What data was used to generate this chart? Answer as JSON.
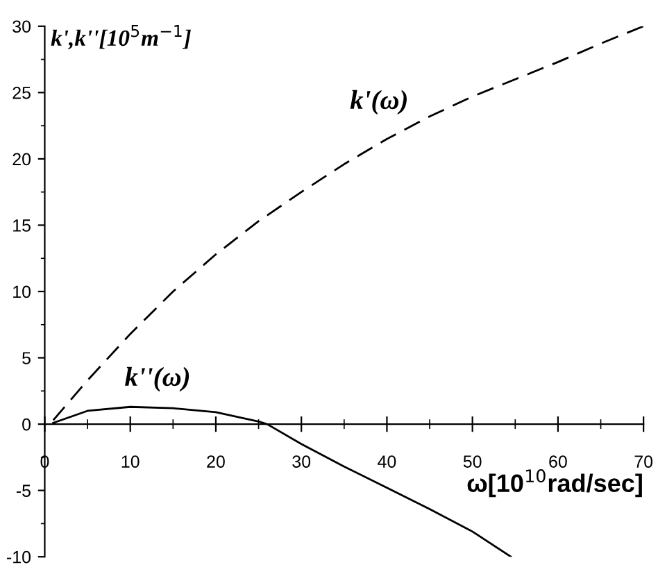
{
  "chart_data": {
    "type": "line",
    "xlabel": "ω[10$^{10}$rad/sec]",
    "ylabel": "k',k''[10$^{5}$m$^{−1}$]",
    "x": [
      1,
      5,
      10,
      15,
      20,
      25,
      30,
      35,
      40,
      45,
      50,
      55,
      60,
      65,
      70
    ],
    "series": [
      {
        "name": "k'(ω)",
        "color": "#000000",
        "line_style": "dashed",
        "values": [
          0.3,
          3.3,
          6.8,
          10,
          12.8,
          15.3,
          17.5,
          19.6,
          21.5,
          23.2,
          24.7,
          26,
          27.3,
          28.7,
          30
        ]
      },
      {
        "name": "k''(ω)",
        "color": "#000000",
        "line_style": "solid",
        "x": [
          1,
          5,
          10,
          15,
          20,
          25,
          26,
          30,
          35,
          40,
          45,
          50,
          54.5
        ],
        "values": [
          0.1,
          1.0,
          1.3,
          1.2,
          0.9,
          0.2,
          0,
          -1.5,
          -3.2,
          -4.8,
          -6.4,
          -8.1,
          -10
        ]
      }
    ],
    "xlim": [
      0,
      70
    ],
    "ylim": [
      -10,
      30
    ],
    "xticks": [
      0,
      10,
      20,
      30,
      40,
      50,
      60,
      70
    ],
    "yticks": [
      -10,
      -5,
      0,
      5,
      10,
      15,
      20,
      25,
      30
    ],
    "grid": false,
    "legend": false,
    "marker": "none"
  }
}
